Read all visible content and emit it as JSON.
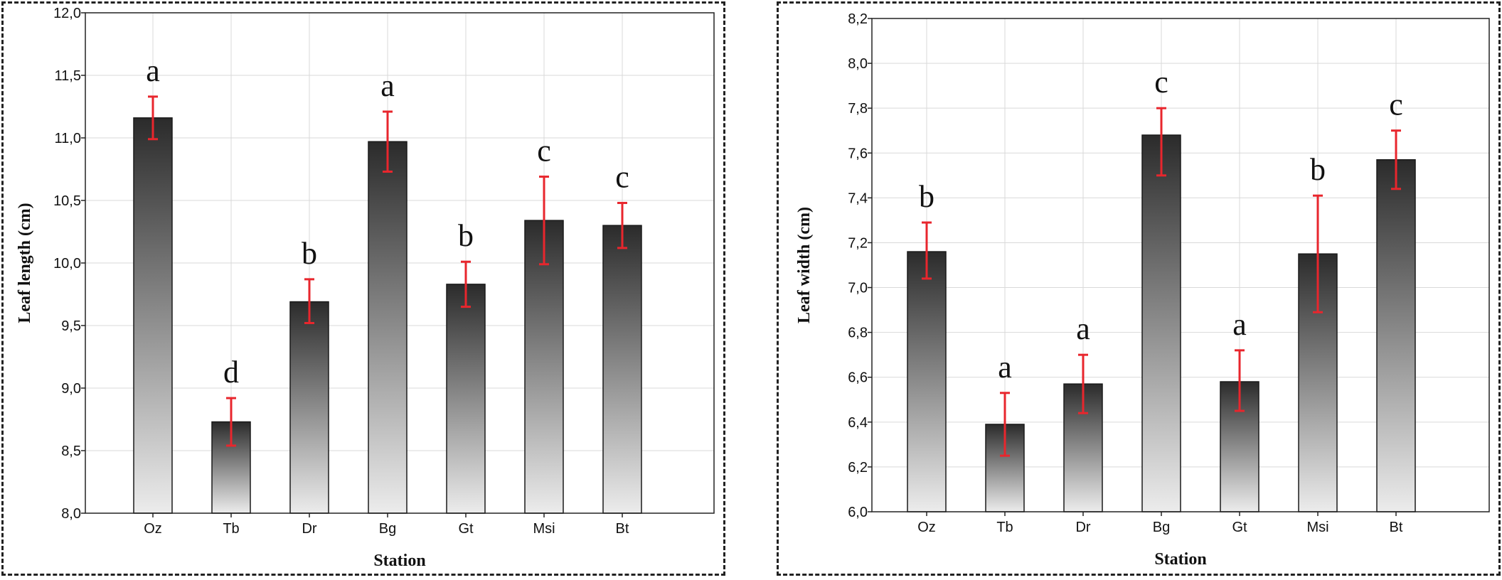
{
  "colors": {
    "error_bar": "#e8262d",
    "bar_top": "#2b2b2b",
    "bar_bottom": "#ececec",
    "grid": "#d9d9d9",
    "frame": "#222222"
  },
  "chart_data": [
    {
      "type": "bar",
      "title": "",
      "xlabel": "Station",
      "ylabel": "Leaf length (cm)",
      "categories": [
        "Oz",
        "Tb",
        "Dr",
        "Bg",
        "Gt",
        "Msi",
        "Bt"
      ],
      "values": [
        11.16,
        8.73,
        9.69,
        10.97,
        9.83,
        10.34,
        10.3
      ],
      "error_low": [
        10.99,
        8.54,
        9.52,
        10.73,
        9.65,
        9.99,
        10.12
      ],
      "error_high": [
        11.33,
        8.92,
        9.87,
        11.21,
        10.01,
        10.69,
        10.48
      ],
      "letters": [
        "a",
        "d",
        "b",
        "a",
        "b",
        "c",
        "c"
      ],
      "ylim": [
        8.0,
        12.0
      ],
      "yticks": [
        8.0,
        8.5,
        9.0,
        9.5,
        10.0,
        10.5,
        11.0,
        11.5,
        12.0
      ],
      "ytick_labels": [
        "8,0",
        "8,5",
        "9,0",
        "9,5",
        "10,0",
        "10,5",
        "11,0",
        "11,5",
        "12,0"
      ],
      "grid": true,
      "legend": "none"
    },
    {
      "type": "bar",
      "title": "",
      "xlabel": "Station",
      "ylabel": "Leaf width (cm)",
      "categories": [
        "Oz",
        "Tb",
        "Dr",
        "Bg",
        "Gt",
        "Msi",
        "Bt"
      ],
      "values": [
        7.16,
        6.39,
        6.57,
        7.68,
        6.58,
        7.15,
        7.57
      ],
      "error_low": [
        7.04,
        6.25,
        6.44,
        7.5,
        6.45,
        6.89,
        7.44
      ],
      "error_high": [
        7.29,
        6.53,
        6.7,
        7.8,
        6.72,
        7.41,
        7.7
      ],
      "letters": [
        "b",
        "a",
        "a",
        "c",
        "a",
        "b",
        "c"
      ],
      "ylim": [
        6.0,
        8.2
      ],
      "yticks": [
        6.0,
        6.2,
        6.4,
        6.6,
        6.8,
        7.0,
        7.2,
        7.4,
        7.6,
        7.8,
        8.0,
        8.2
      ],
      "ytick_labels": [
        "6,0",
        "6,2",
        "6,4",
        "6,6",
        "6,8",
        "7,0",
        "7,2",
        "7,4",
        "7,6",
        "7,8",
        "8,0",
        "8,2"
      ],
      "grid": true,
      "legend": "none"
    }
  ]
}
